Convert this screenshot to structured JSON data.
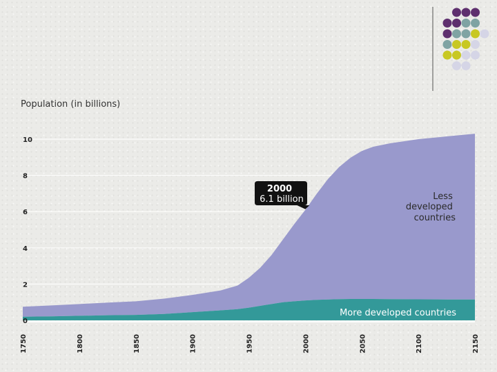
{
  "colors": {
    "less_developed": "#9999cc",
    "more_developed": "#339999",
    "dot_purple": "#5e2f6e",
    "dot_teal": "#7fa3a3",
    "dot_lime": "#c8c822",
    "dot_lavender": "#d5d5e6"
  },
  "chart_data": {
    "type": "area",
    "stacked": true,
    "ylabel": "Population (in billions)",
    "xlabel": "",
    "ylim": [
      0,
      10.5
    ],
    "xlim": [
      1750,
      2150
    ],
    "y_ticks": [
      "0",
      "2",
      "4",
      "6",
      "8",
      "10"
    ],
    "x_ticks": [
      "1750",
      "1800",
      "1850",
      "1900",
      "1950",
      "2000",
      "2050",
      "2100",
      "2150"
    ],
    "grid": "horizontal",
    "x": [
      1750,
      1775,
      1800,
      1825,
      1850,
      1875,
      1900,
      1925,
      1940,
      1950,
      1960,
      1970,
      1980,
      1990,
      2000,
      2010,
      2020,
      2030,
      2040,
      2050,
      2060,
      2075,
      2100,
      2125,
      2150
    ],
    "series": [
      {
        "name": "More developed countries",
        "values": [
          0.2,
          0.22,
          0.25,
          0.28,
          0.3,
          0.35,
          0.45,
          0.55,
          0.62,
          0.7,
          0.8,
          0.9,
          1.0,
          1.05,
          1.1,
          1.13,
          1.15,
          1.17,
          1.18,
          1.18,
          1.18,
          1.17,
          1.16,
          1.15,
          1.15
        ]
      },
      {
        "name": "Less developed countries",
        "values": [
          0.55,
          0.6,
          0.65,
          0.7,
          0.75,
          0.85,
          0.95,
          1.1,
          1.3,
          1.65,
          2.1,
          2.7,
          3.45,
          4.25,
          5.0,
          5.85,
          6.65,
          7.3,
          7.8,
          8.17,
          8.4,
          8.6,
          8.84,
          9.0,
          9.15
        ]
      }
    ],
    "annotation": {
      "x": 2000,
      "y": 6.1,
      "year": "2000",
      "value": "6.1 billion"
    },
    "series_labels": {
      "less_developed": [
        "Less",
        "developed",
        "countries"
      ],
      "more_developed": "More developed countries"
    }
  }
}
